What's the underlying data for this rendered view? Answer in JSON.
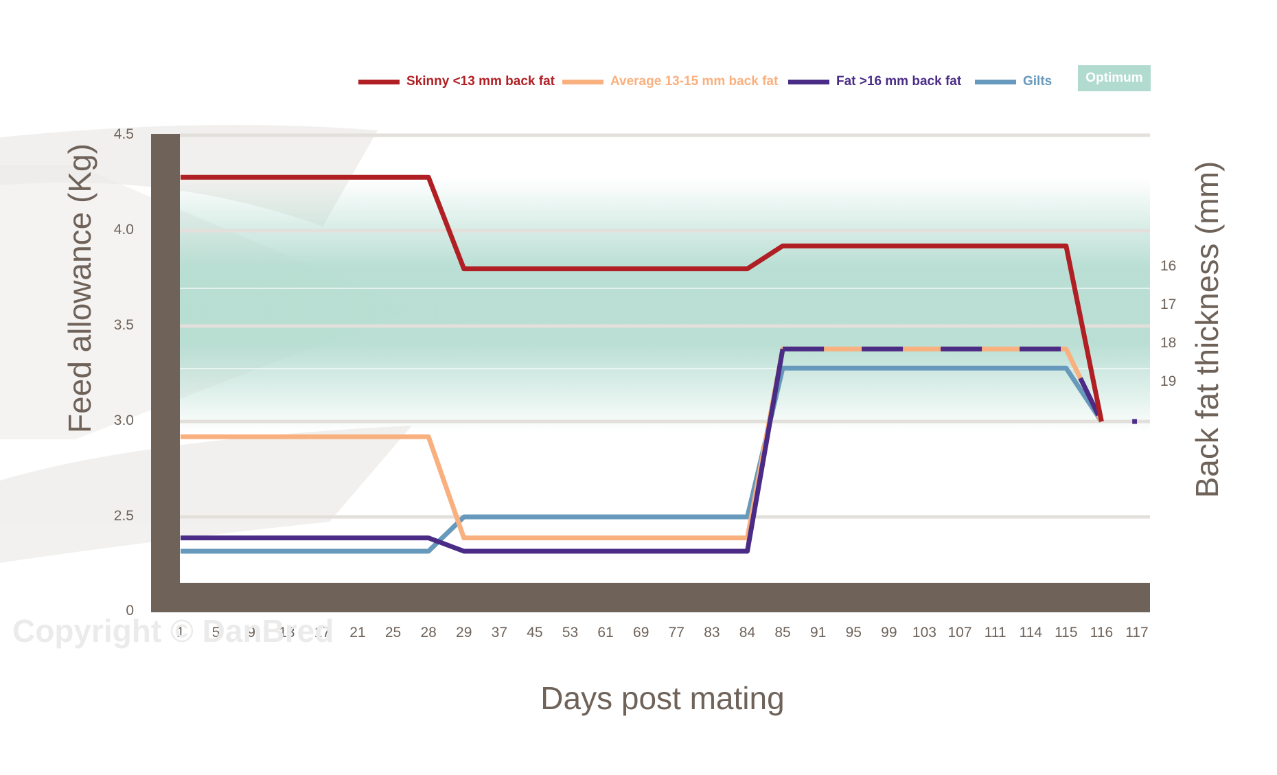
{
  "legend": {
    "skinny": {
      "label": "Skinny <13 mm back fat",
      "color": "#b01f24"
    },
    "average": {
      "label": "Average 13-15 mm back fat",
      "color": "#f9b07f"
    },
    "fat": {
      "label": "Fat >16 mm back fat",
      "color": "#4a2c86"
    },
    "gilts": {
      "label": "Gilts",
      "color": "#6699bb"
    },
    "optimum": {
      "label": "Optimum",
      "color": "#b2dbcf"
    }
  },
  "axes": {
    "y_left_label": "Feed allowance (Kg)",
    "y_right_label": "Back fat thickness (mm)",
    "x_label": "Days post mating",
    "y_left_ticks": [
      "4.5",
      "4.0",
      "3.5",
      "3.0",
      "2.5",
      "0"
    ],
    "y_right_ticks": [
      "16",
      "17",
      "18",
      "19"
    ],
    "x_ticks": [
      "1",
      "5",
      "9",
      "13",
      "17",
      "21",
      "25",
      "28",
      "29",
      "37",
      "45",
      "53",
      "61",
      "69",
      "77",
      "83",
      "84",
      "85",
      "91",
      "95",
      "99",
      "103",
      "107",
      "111",
      "114",
      "115",
      "116",
      "117"
    ]
  },
  "watermark": "Copyright © DanBred",
  "chart_data": {
    "type": "line",
    "title": "",
    "xlabel": "Days post mating",
    "ylabel": "Feed allowance (Kg)",
    "ylabel_right": "Back fat thickness (mm)",
    "ylim": [
      0,
      4.5
    ],
    "y_ticks": [
      0,
      2.5,
      3.0,
      3.5,
      4.0,
      4.5
    ],
    "y_right_ticks": [
      16,
      17,
      18,
      19
    ],
    "grid": true,
    "legend_position": "top",
    "shaded_band": {
      "label": "Optimum",
      "y_from": 3.0,
      "y_to": 4.1
    },
    "x": [
      "1",
      "5",
      "9",
      "13",
      "17",
      "21",
      "25",
      "28",
      "29",
      "37",
      "45",
      "53",
      "61",
      "69",
      "77",
      "83",
      "84",
      "85",
      "91",
      "95",
      "99",
      "103",
      "107",
      "111",
      "114",
      "115",
      "116",
      "117"
    ],
    "series": [
      {
        "name": "Skinny <13 mm back fat",
        "color": "#b01f24",
        "values": [
          4.28,
          4.28,
          4.28,
          4.28,
          4.28,
          4.28,
          4.28,
          4.28,
          3.8,
          3.8,
          3.8,
          3.8,
          3.8,
          3.8,
          3.8,
          3.8,
          3.8,
          3.92,
          3.92,
          3.92,
          3.92,
          3.92,
          3.92,
          3.92,
          3.92,
          3.92,
          3.0,
          null
        ]
      },
      {
        "name": "Average 13-15 mm back fat",
        "color": "#f9b07f",
        "values": [
          2.92,
          2.92,
          2.92,
          2.92,
          2.92,
          2.92,
          2.92,
          2.92,
          2.39,
          2.39,
          2.39,
          2.39,
          2.39,
          2.39,
          2.39,
          2.39,
          2.39,
          3.38,
          3.38,
          3.38,
          3.38,
          3.38,
          3.38,
          3.38,
          3.38,
          3.38,
          3.0,
          null
        ]
      },
      {
        "name": "Fat >16 mm back fat",
        "color": "#4a2c86",
        "values": [
          2.39,
          2.39,
          2.39,
          2.39,
          2.39,
          2.39,
          2.39,
          2.39,
          2.32,
          2.32,
          2.32,
          2.32,
          2.32,
          2.32,
          2.32,
          2.32,
          2.32,
          3.38,
          3.38,
          3.38,
          3.38,
          3.38,
          3.38,
          3.38,
          3.38,
          3.38,
          3.0,
          3.0
        ]
      },
      {
        "name": "Gilts",
        "color": "#6699bb",
        "values": [
          2.32,
          2.32,
          2.32,
          2.32,
          2.32,
          2.32,
          2.32,
          2.32,
          2.5,
          2.5,
          2.5,
          2.5,
          2.5,
          2.5,
          2.5,
          2.5,
          2.5,
          3.28,
          3.28,
          3.28,
          3.28,
          3.28,
          3.28,
          3.28,
          3.28,
          3.28,
          3.0,
          null
        ]
      }
    ]
  }
}
